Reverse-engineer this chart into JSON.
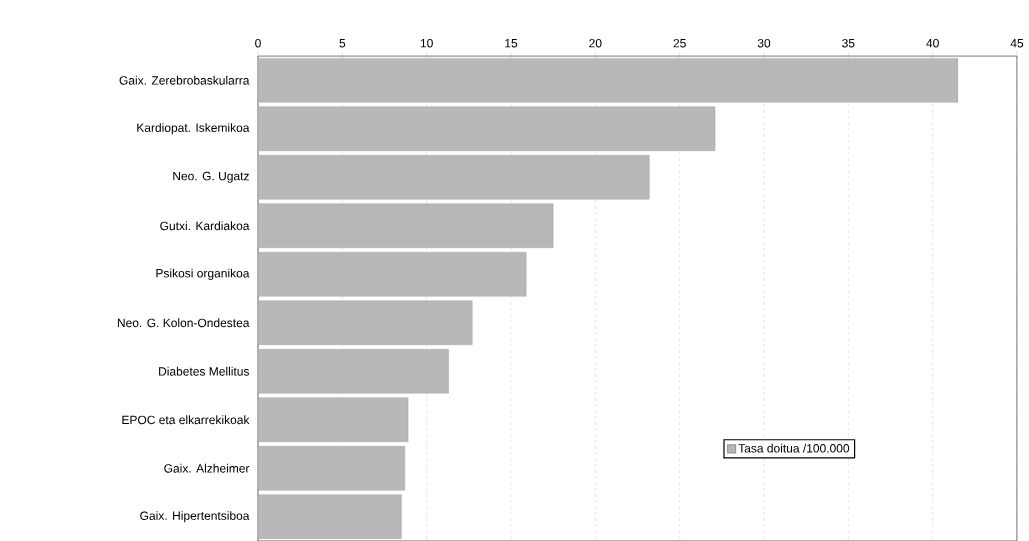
{
  "chart_data": {
    "type": "bar",
    "orientation": "horizontal",
    "categories": [
      "Gaix. Zerebrobaskularra",
      "Kardiopat. Iskemikoa",
      "Neo. G. Ugatz",
      "Gutxi. Kardiakoa",
      "Psikosi organikoa",
      "Neo. G. Kolon-Ondestea",
      "Diabetes Mellitus",
      "EPOC eta elkarrekikoak",
      "Gaix. Alzheimer",
      "Gaix. Hipertentsiboa"
    ],
    "series": [
      {
        "name": "Tasa doitua /100.000",
        "color": "#b8b8b8",
        "values": [
          41.5,
          27.1,
          23.2,
          17.5,
          15.9,
          12.7,
          11.3,
          8.9,
          8.7,
          8.5
        ]
      }
    ],
    "xlim": [
      0,
      45
    ],
    "xticks": [
      0,
      5,
      10,
      15,
      20,
      25,
      30,
      35,
      40,
      45
    ],
    "grid": "x",
    "legend": "bottom right"
  }
}
